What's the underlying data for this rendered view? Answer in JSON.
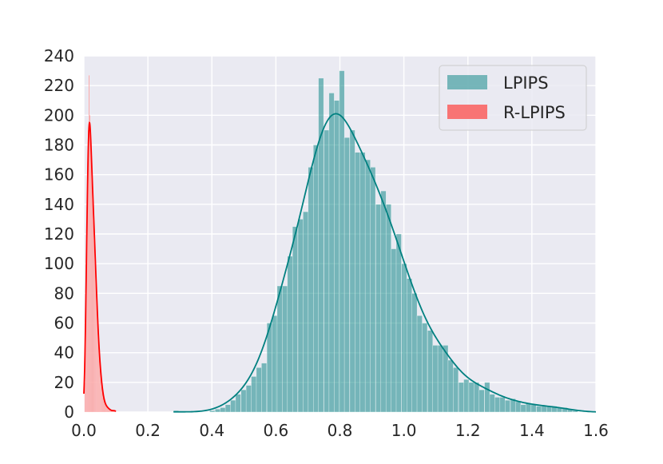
{
  "chart_data": {
    "type": "bar",
    "style": "seaborn histogram with KDE overlay",
    "title": "",
    "xlabel": "",
    "ylabel": "",
    "xlim": [
      0.0,
      1.6
    ],
    "ylim": [
      0,
      240
    ],
    "xticks": [
      "0.0",
      "0.2",
      "0.4",
      "0.6",
      "0.8",
      "1.0",
      "1.2",
      "1.4",
      "1.6"
    ],
    "yticks": [
      "0",
      "20",
      "40",
      "60",
      "80",
      "100",
      "120",
      "140",
      "160",
      "180",
      "200",
      "220",
      "240"
    ],
    "grid": true,
    "background": "#eaeaf2",
    "legend_position": "top-right",
    "series": [
      {
        "name": "LPIPS",
        "color": "#008080",
        "bin_width": 0.0162,
        "bin_starts": [
          0.28,
          0.296,
          0.312,
          0.329,
          0.345,
          0.361,
          0.377,
          0.393,
          0.41,
          0.426,
          0.442,
          0.458,
          0.474,
          0.491,
          0.507,
          0.523,
          0.539,
          0.555,
          0.572,
          0.588,
          0.604,
          0.62,
          0.636,
          0.652,
          0.669,
          0.685,
          0.701,
          0.717,
          0.733,
          0.75,
          0.766,
          0.782,
          0.798,
          0.814,
          0.831,
          0.847,
          0.863,
          0.879,
          0.895,
          0.912,
          0.928,
          0.944,
          0.96,
          0.976,
          0.993,
          1.009,
          1.025,
          1.041,
          1.057,
          1.074,
          1.09,
          1.106,
          1.122,
          1.138,
          1.154,
          1.171,
          1.187,
          1.203,
          1.219,
          1.235,
          1.252,
          1.268,
          1.284,
          1.3,
          1.316,
          1.333,
          1.349,
          1.365,
          1.381,
          1.397,
          1.414,
          1.43,
          1.446,
          1.462,
          1.478,
          1.495,
          1.511,
          1.527
        ],
        "counts": [
          1,
          0,
          0,
          0,
          0,
          0,
          0,
          1,
          2,
          3,
          5,
          8,
          12,
          15,
          18,
          24,
          30,
          33,
          60,
          65,
          85,
          85,
          105,
          125,
          130,
          135,
          165,
          180,
          225,
          190,
          215,
          210,
          230,
          185,
          190,
          175,
          175,
          170,
          165,
          140,
          149,
          140,
          110,
          120,
          100,
          90,
          80,
          65,
          60,
          55,
          45,
          45,
          45,
          35,
          30,
          20,
          22,
          20,
          20,
          15,
          20,
          12,
          10,
          10,
          8,
          9,
          7,
          5,
          6,
          5,
          4,
          4,
          4,
          4,
          3,
          3,
          2,
          1
        ]
      },
      {
        "name": "R-LPIPS",
        "color": "#ff0000",
        "bar_color": "#f87474",
        "bin_width": 0.0026,
        "bin_starts": [
          0.002,
          0.0046,
          0.0072,
          0.0098,
          0.0124,
          0.015,
          0.0176,
          0.0202,
          0.0228,
          0.0254,
          0.028,
          0.0306,
          0.0332,
          0.0358,
          0.0384,
          0.041,
          0.0436,
          0.0462,
          0.0488,
          0.0514,
          0.054,
          0.0566,
          0.0592,
          0.0618,
          0.0644,
          0.067,
          0.0696,
          0.0722,
          0.0748,
          0.0774,
          0.08,
          0.0826,
          0.0852,
          0.0878,
          0.0904,
          0.093,
          0.0956,
          0.0982
        ],
        "counts": [
          20,
          60,
          110,
          160,
          190,
          227,
          200,
          185,
          170,
          150,
          140,
          125,
          110,
          95,
          80,
          65,
          52,
          42,
          33,
          26,
          20,
          15,
          11,
          8,
          6,
          5,
          4,
          3,
          3,
          2,
          2,
          1,
          1,
          1,
          1,
          1,
          1,
          1
        ]
      }
    ]
  }
}
